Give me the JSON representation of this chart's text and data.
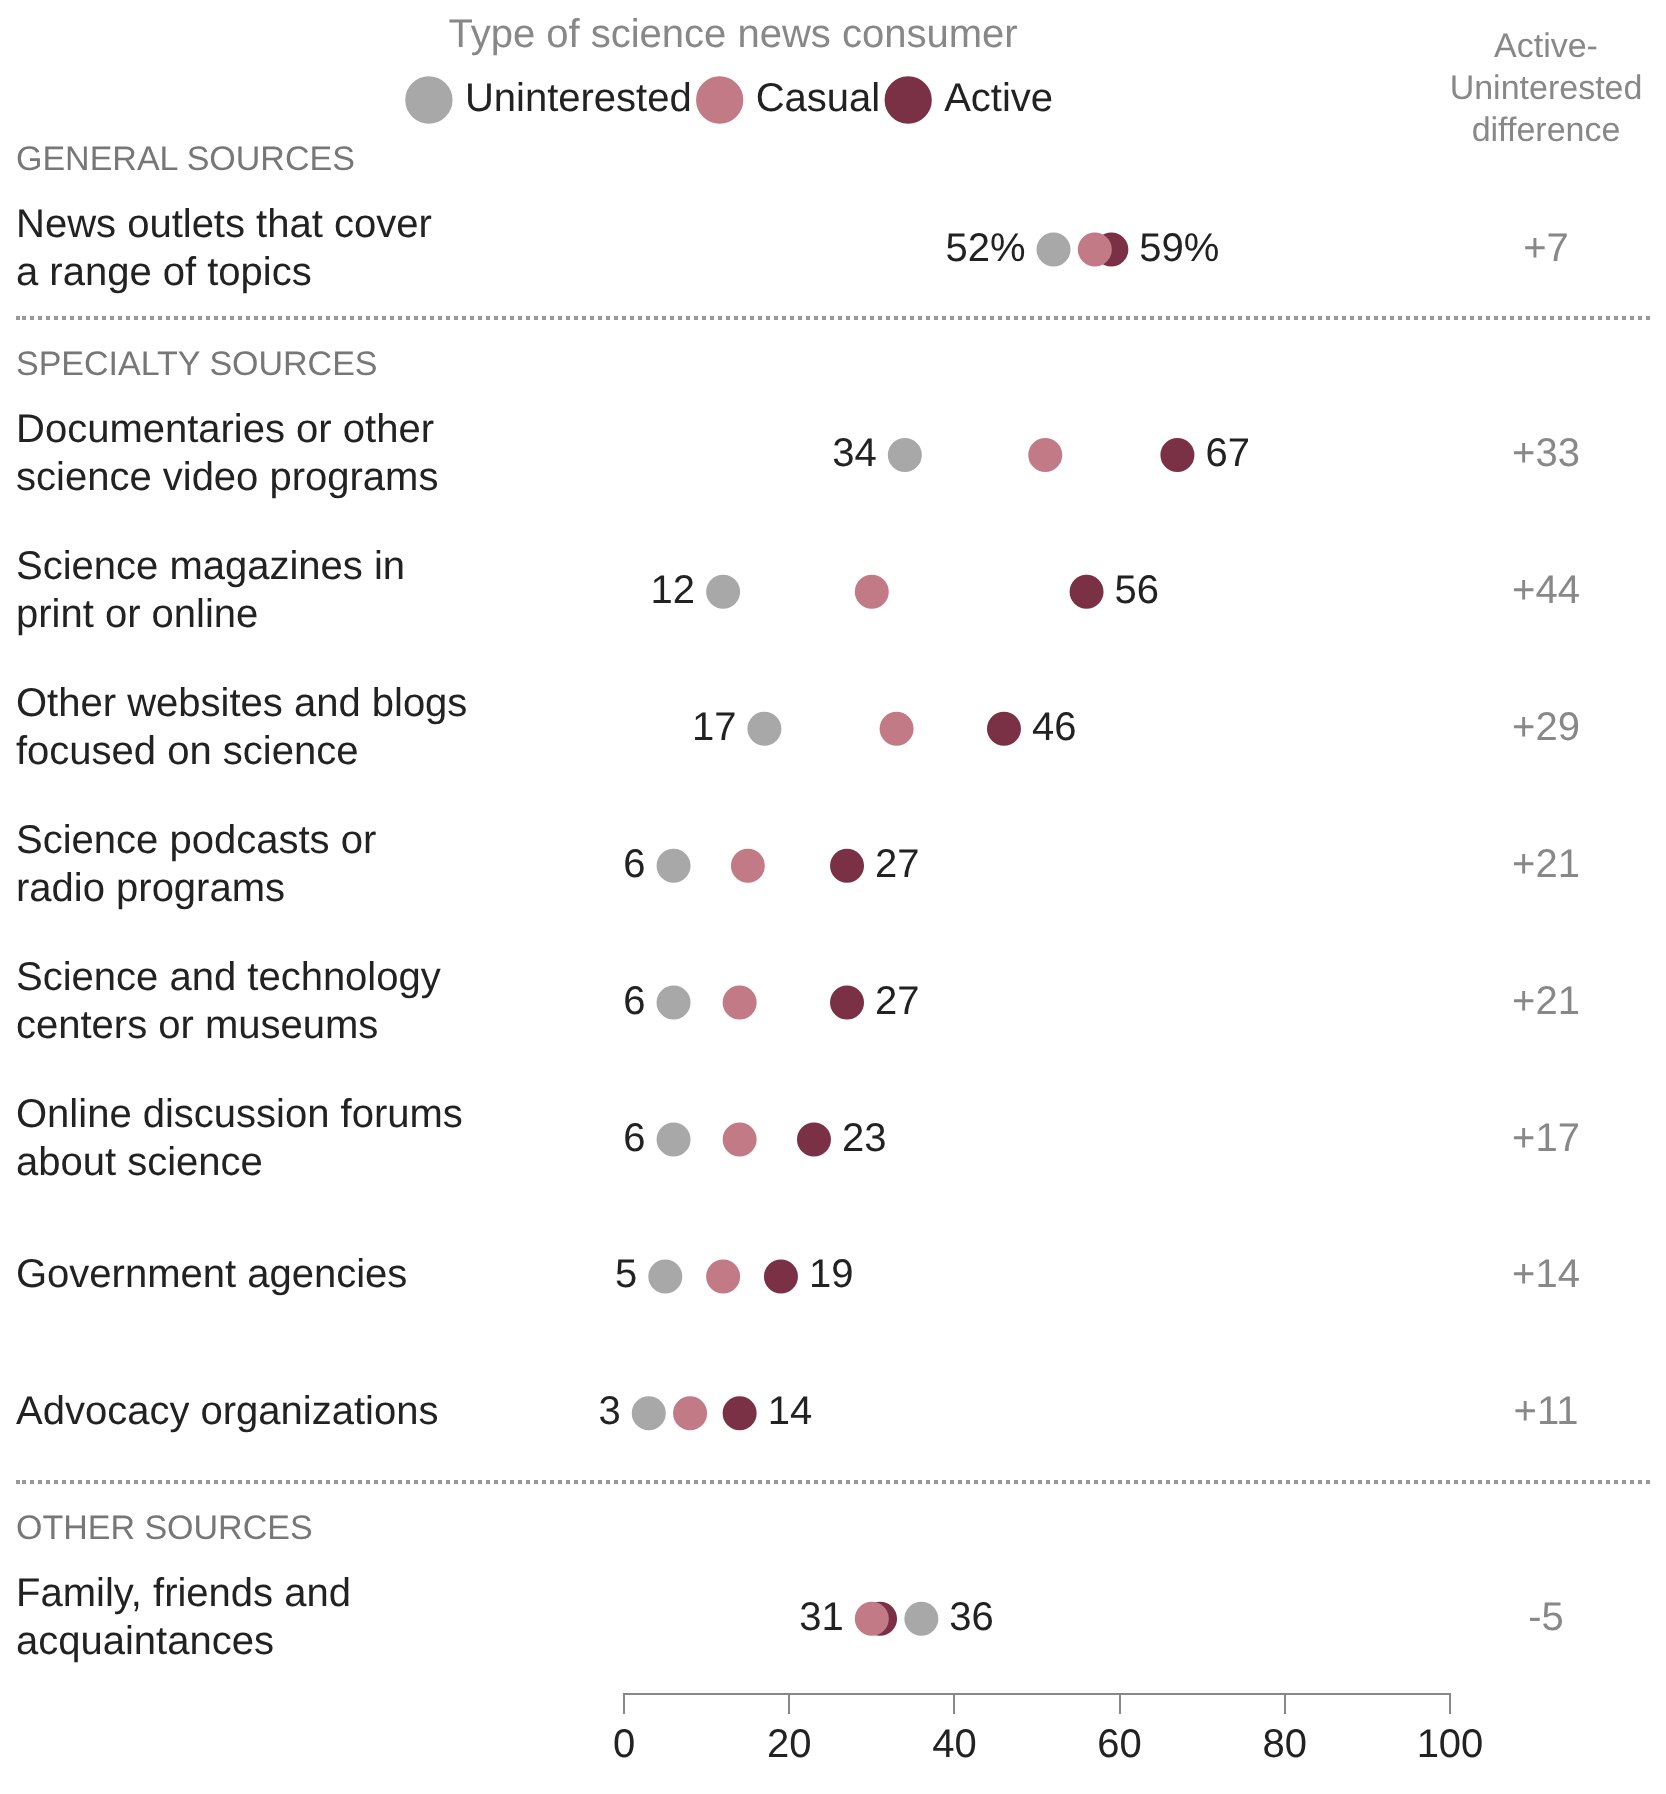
{
  "chart_data": {
    "type": "scatter",
    "orientation": "horizontal",
    "legend": "top",
    "legend_title": "Type of science news consumer",
    "marker": "circle",
    "categories": [
      "GENERAL SOURCES",
      "News outlets that cover a range of topics",
      "SPECIALTY SOURCES",
      "Documentaries or other science video programs",
      "Science magazines in print or online",
      "Other websites and blogs focused on science",
      "Science podcasts or radio programs",
      "Science and technology centers or museums",
      "Online discussion forums about science",
      "Government agencies",
      "Advocacy organizations",
      "OTHER SOURCES",
      "Family, friends and acquaintances"
    ],
    "xlim": [
      0,
      100
    ],
    "xticks": [
      0,
      20,
      40,
      60,
      80,
      100
    ],
    "series": [
      {
        "name": "Uninterested",
        "color": "#a8a8a8",
        "values": [
          null,
          52,
          null,
          34,
          12,
          17,
          6,
          6,
          6,
          5,
          3,
          null,
          36
        ],
        "value_labels": [
          null,
          "52%",
          null,
          "34",
          "12",
          "17",
          "6",
          "6",
          "6",
          "5",
          "3",
          null,
          "36"
        ]
      },
      {
        "name": "Casual",
        "color": "#c27b86",
        "values": [
          null,
          57,
          null,
          51,
          30,
          33,
          15,
          14,
          14,
          12,
          8,
          null,
          30
        ]
      },
      {
        "name": "Active",
        "color": "#7a3146",
        "values": [
          null,
          59,
          null,
          67,
          56,
          46,
          27,
          27,
          23,
          19,
          14,
          null,
          31
        ],
        "value_labels": [
          null,
          "59%",
          null,
          "67",
          "56",
          "46",
          "27",
          "27",
          "23",
          "19",
          "14",
          null,
          "31"
        ]
      }
    ],
    "annotations": [
      "Active-Uninterested difference",
      "+7",
      "+33",
      "+44",
      "+29",
      "+21",
      "+21",
      "+17",
      "+14",
      "+11",
      "-5"
    ]
  }
}
